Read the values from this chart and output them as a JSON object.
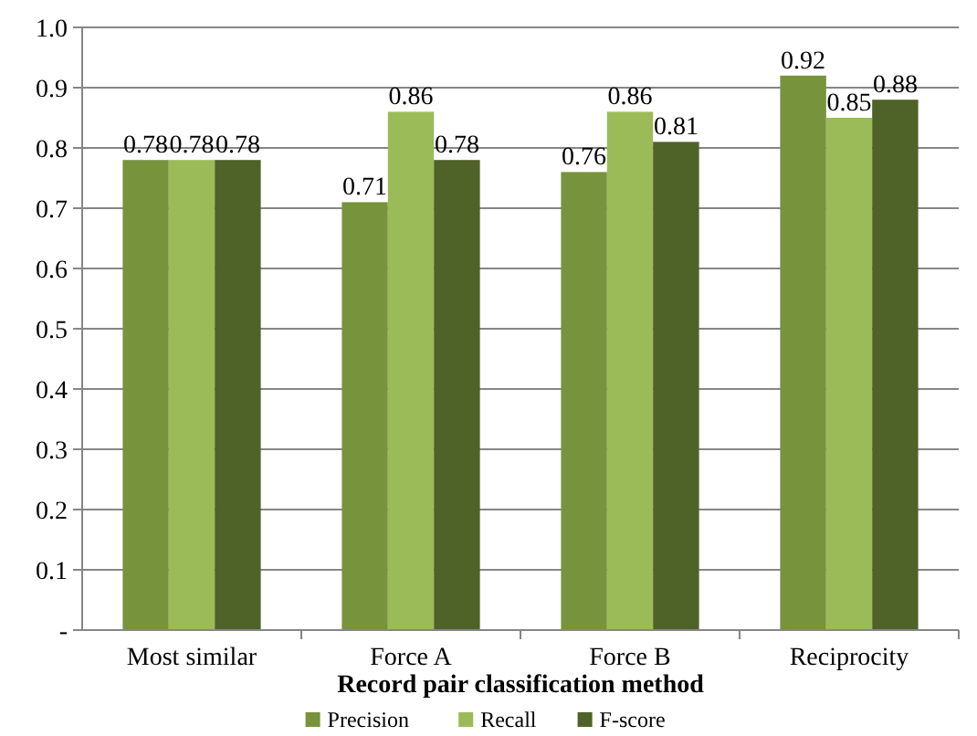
{
  "chart_data": {
    "type": "bar",
    "xlabel": "Record pair classification method",
    "categories": [
      "Most similar",
      "Force A",
      "Force B",
      "Reciprocity"
    ],
    "series": [
      {
        "name": "Precision",
        "color": "#77933c",
        "values": [
          0.78,
          0.71,
          0.76,
          0.92
        ]
      },
      {
        "name": "Recall",
        "color": "#9bbb59",
        "values": [
          0.78,
          0.86,
          0.86,
          0.85
        ]
      },
      {
        "name": "F-score",
        "color": "#4f6228",
        "values": [
          0.78,
          0.78,
          0.81,
          0.88
        ]
      }
    ],
    "ylim": [
      0,
      1
    ],
    "yticks": [
      {
        "value": 0,
        "label": "-"
      },
      {
        "value": 0.1,
        "label": "0.1"
      },
      {
        "value": 0.2,
        "label": "0.2"
      },
      {
        "value": 0.3,
        "label": "0.3"
      },
      {
        "value": 0.4,
        "label": "0.4"
      },
      {
        "value": 0.5,
        "label": "0.5"
      },
      {
        "value": 0.6,
        "label": "0.6"
      },
      {
        "value": 0.7,
        "label": "0.7"
      },
      {
        "value": 0.8,
        "label": "0.8"
      },
      {
        "value": 0.9,
        "label": "0.9"
      },
      {
        "value": 1,
        "label": "1.0"
      }
    ],
    "grid": "y",
    "legend": "bottom",
    "data_labels": true
  }
}
